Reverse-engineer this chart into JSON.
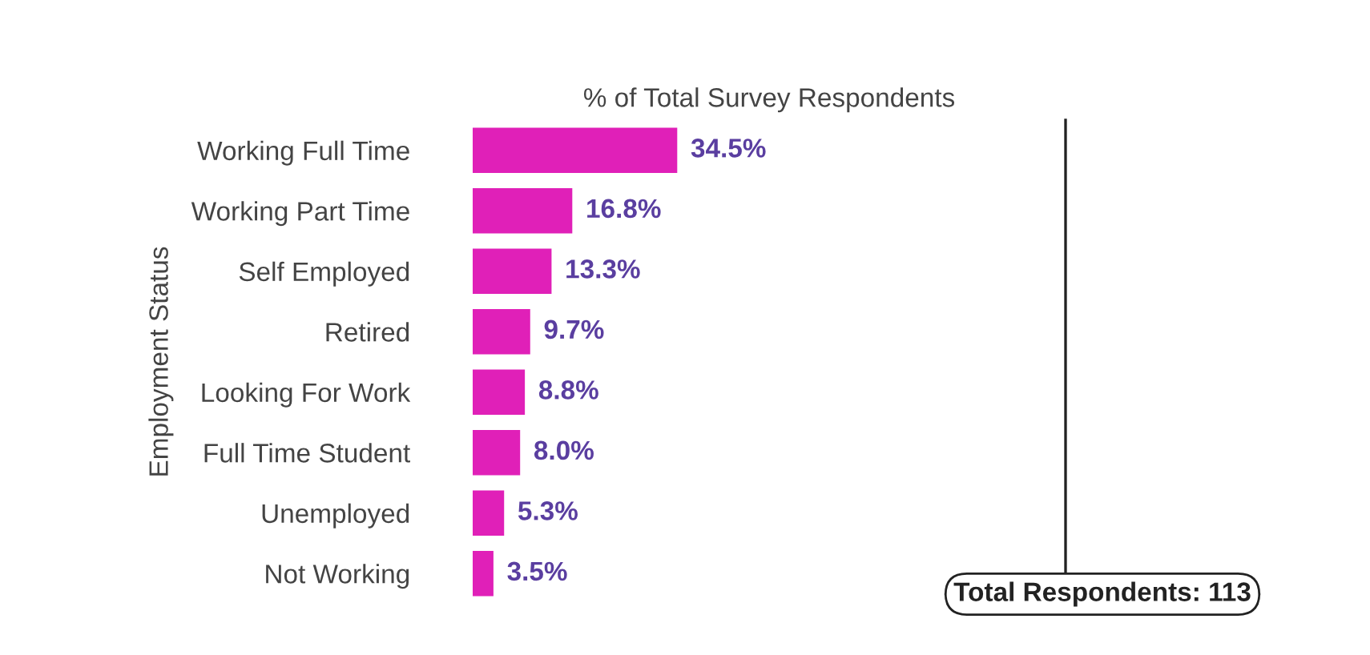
{
  "chart_data": {
    "type": "bar",
    "orientation": "horizontal",
    "xlabel": "% of Total Survey Respondents",
    "ylabel": "Employment Status",
    "categories": [
      "Working Full Time",
      "Working Part Time",
      "Self Employed",
      "Retired",
      "Looking For Work",
      "Full Time Student",
      "Unemployed",
      "Not Working"
    ],
    "series": [
      {
        "color": "#e020b8",
        "values": [
          34.5,
          16.8,
          13.3,
          9.7,
          8.8,
          8.0,
          5.3,
          3.5
        ],
        "value_labels": [
          "34.5%",
          "16.8%",
          "13.3%",
          "9.7%",
          "8.8%",
          "8.0%",
          "5.3%",
          "3.5%"
        ]
      }
    ],
    "xlim": [
      0,
      100
    ],
    "tick_labels": "y",
    "grid": false,
    "legend": false,
    "annotations": [
      "Total Respondents: 113"
    ]
  }
}
